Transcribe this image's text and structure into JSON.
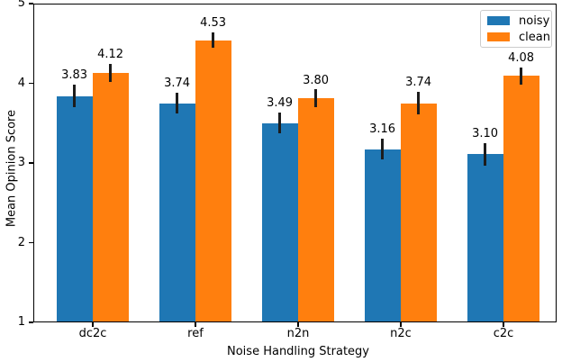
{
  "chart_data": {
    "type": "bar",
    "title": "",
    "xlabel": "Noise Handling Strategy",
    "ylabel": "Mean Opinion Score",
    "categories": [
      "dc2c",
      "ref",
      "n2n",
      "n2c",
      "c2c"
    ],
    "series": [
      {
        "name": "noisy",
        "color": "#1f77b4",
        "values": [
          3.83,
          3.74,
          3.49,
          3.16,
          3.1
        ],
        "errors": [
          0.14,
          0.13,
          0.13,
          0.13,
          0.14
        ]
      },
      {
        "name": "clean",
        "color": "#ff7f0e",
        "values": [
          4.12,
          4.53,
          3.8,
          3.74,
          4.08
        ],
        "errors": [
          0.11,
          0.1,
          0.11,
          0.14,
          0.11
        ]
      }
    ],
    "bar_value_labels": [
      "3.83",
      "3.74",
      "3.49",
      "3.16",
      "3.10",
      "4.12",
      "4.53",
      "3.80",
      "3.74",
      "4.08"
    ],
    "ylim": [
      1,
      5
    ],
    "yticks": [
      "1",
      "2",
      "3",
      "4",
      "5"
    ],
    "grid": false,
    "legend": {
      "position": "upper right",
      "entries": [
        "noisy",
        "clean"
      ]
    },
    "colors": {
      "error_bar": "#1c1c1c",
      "axis": "#000000",
      "legend_border": "#cccccc",
      "text": "#000000",
      "background": "#ffffff"
    }
  }
}
